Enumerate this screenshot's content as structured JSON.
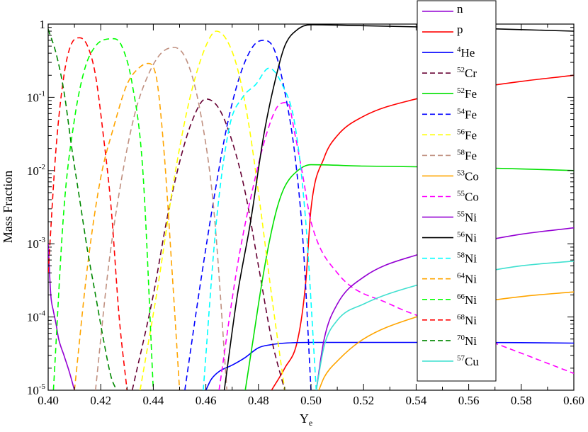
{
  "chart_data": {
    "type": "line",
    "title": "",
    "xlabel": "Y",
    "xlabel_sub": "e",
    "ylabel": "Mass Fraction",
    "xlim": [
      0.4,
      0.6
    ],
    "ylim": [
      1e-05,
      1
    ],
    "yscale": "log",
    "grid": false,
    "legend_position": "top-right",
    "x_ticks": [
      "0.40",
      "0.42",
      "0.44",
      "0.46",
      "0.48",
      "0.50",
      "0.52",
      "0.54",
      "0.56",
      "0.58",
      "0.60"
    ],
    "y_ticks": [
      {
        "mantissa": "10",
        "exp": "-5"
      },
      {
        "mantissa": "10",
        "exp": "-4"
      },
      {
        "mantissa": "10",
        "exp": "-3"
      },
      {
        "mantissa": "10",
        "exp": "-2"
      },
      {
        "mantissa": "10",
        "exp": "-1"
      },
      {
        "mantissa": "1",
        "exp": ""
      }
    ],
    "series": [
      {
        "name": "n",
        "mass": "",
        "el": "n",
        "color": "#9400d3",
        "dash": false,
        "x": [
          0.4,
          0.401,
          0.402,
          0.403,
          0.404,
          0.406,
          0.408,
          0.41
        ],
        "y": [
          0.001,
          0.0002,
          0.00012,
          8e-05,
          5e-05,
          3e-05,
          1.8e-05,
          1e-05
        ]
      },
      {
        "name": "p",
        "mass": "",
        "el": "p",
        "color": "#ff0000",
        "dash": false,
        "x": [
          0.485,
          0.49,
          0.495,
          0.498,
          0.5,
          0.505,
          0.51,
          0.52,
          0.54,
          0.56,
          0.58,
          0.6
        ],
        "y": [
          1e-05,
          2e-05,
          5e-05,
          0.0003,
          0.003,
          0.015,
          0.03,
          0.055,
          0.095,
          0.13,
          0.165,
          0.2
        ]
      },
      {
        "name": "4He",
        "mass": "4",
        "el": "He",
        "color": "#0000ff",
        "dash": false,
        "x": [
          0.46,
          0.462,
          0.465,
          0.47,
          0.475,
          0.48,
          0.485,
          0.49,
          0.5,
          0.52,
          0.56,
          0.6
        ],
        "y": [
          1e-05,
          1.4e-05,
          1.8e-05,
          2.2e-05,
          2.8e-05,
          3.8e-05,
          4.2e-05,
          4.4e-05,
          4.5e-05,
          4.5e-05,
          4.5e-05,
          4.4e-05
        ]
      },
      {
        "name": "52Cr",
        "mass": "52",
        "el": "Cr",
        "color": "#660033",
        "dash": true,
        "x": [
          0.432,
          0.44,
          0.445,
          0.45,
          0.455,
          0.46,
          0.465,
          0.47,
          0.475,
          0.48,
          0.485,
          0.49
        ],
        "y": [
          1e-05,
          0.0002,
          0.002,
          0.013,
          0.05,
          0.095,
          0.07,
          0.025,
          0.005,
          0.0005,
          5e-05,
          1e-05
        ]
      },
      {
        "name": "52Fe",
        "mass": "52",
        "el": "Fe",
        "color": "#00e000",
        "dash": false,
        "x": [
          0.475,
          0.478,
          0.481,
          0.484,
          0.487,
          0.49,
          0.495,
          0.5,
          0.52,
          0.56,
          0.6
        ],
        "y": [
          1e-05,
          5e-05,
          0.00025,
          0.001,
          0.003,
          0.006,
          0.01,
          0.012,
          0.0115,
          0.011,
          0.01
        ]
      },
      {
        "name": "54Fe",
        "mass": "54",
        "el": "Fe",
        "color": "#0000ff",
        "dash": true,
        "x": [
          0.452,
          0.458,
          0.463,
          0.468,
          0.473,
          0.478,
          0.482,
          0.486,
          0.49,
          0.494,
          0.497,
          0.5
        ],
        "y": [
          1e-05,
          0.0003,
          0.004,
          0.04,
          0.2,
          0.5,
          0.6,
          0.45,
          0.12,
          0.015,
          0.001,
          1e-05
        ]
      },
      {
        "name": "56Fe",
        "mass": "56",
        "el": "Fe",
        "color": "#ffff00",
        "dash": true,
        "x": [
          0.435,
          0.442,
          0.448,
          0.454,
          0.46,
          0.464,
          0.468,
          0.472,
          0.476,
          0.48,
          0.485,
          0.49
        ],
        "y": [
          1e-05,
          0.0003,
          0.008,
          0.1,
          0.5,
          0.8,
          0.6,
          0.25,
          0.05,
          0.005,
          0.0002,
          1e-05
        ]
      },
      {
        "name": "58Fe",
        "mass": "58",
        "el": "Fe",
        "color": "#c09080",
        "dash": true,
        "x": [
          0.418,
          0.423,
          0.428,
          0.433,
          0.438,
          0.443,
          0.448,
          0.453,
          0.458,
          0.463,
          0.468
        ],
        "y": [
          1e-05,
          0.0005,
          0.008,
          0.06,
          0.2,
          0.4,
          0.48,
          0.3,
          0.06,
          0.003,
          1e-05
        ]
      },
      {
        "name": "53Co",
        "mass": "53",
        "el": "Co",
        "color": "#ffa500",
        "dash": false,
        "x": [
          0.503,
          0.505,
          0.51,
          0.52,
          0.54,
          0.56,
          0.58,
          0.6
        ],
        "y": [
          1e-05,
          1.5e-05,
          2.5e-05,
          5e-05,
          0.0001,
          0.00015,
          0.00019,
          0.00022
        ]
      },
      {
        "name": "55Co",
        "mass": "55",
        "el": "Co",
        "color": "#ff00ff",
        "dash": true,
        "x": [
          0.465,
          0.472,
          0.478,
          0.484,
          0.488,
          0.491,
          0.494,
          0.497,
          0.5,
          0.51,
          0.53,
          0.56,
          0.6
        ],
        "y": [
          1e-05,
          0.0005,
          0.006,
          0.04,
          0.08,
          0.085,
          0.03,
          0.008,
          0.002,
          0.0004,
          0.00015,
          6e-05,
          1.7e-05
        ]
      },
      {
        "name": "55Ni",
        "mass": "55",
        "el": "Ni",
        "color": "#9400d3",
        "dash": false,
        "x": [
          0.502,
          0.505,
          0.51,
          0.52,
          0.54,
          0.56,
          0.58,
          0.6
        ],
        "y": [
          1e-05,
          5e-05,
          0.00015,
          0.00035,
          0.0007,
          0.001,
          0.00135,
          0.00165
        ]
      },
      {
        "name": "56Ni",
        "mass": "56",
        "el": "Ni",
        "color": "#000000",
        "dash": false,
        "x": [
          0.467,
          0.472,
          0.477,
          0.482,
          0.486,
          0.49,
          0.495,
          0.5,
          0.52,
          0.56,
          0.6
        ],
        "y": [
          1e-05,
          0.0002,
          0.002,
          0.03,
          0.15,
          0.5,
          0.85,
          0.98,
          0.95,
          0.88,
          0.8
        ]
      },
      {
        "name": "58Ni",
        "mass": "58",
        "el": "Ni",
        "color": "#00ffff",
        "dash": true,
        "x": [
          0.459,
          0.464,
          0.469,
          0.474,
          0.479,
          0.484,
          0.489,
          0.494,
          0.498,
          0.502
        ],
        "y": [
          1e-05,
          0.002,
          0.04,
          0.1,
          0.15,
          0.25,
          0.15,
          0.04,
          0.002,
          1e-05
        ]
      },
      {
        "name": "64Ni",
        "mass": "64",
        "el": "Ni",
        "color": "#ffa500",
        "dash": true,
        "x": [
          0.41,
          0.415,
          0.42,
          0.425,
          0.43,
          0.435,
          0.438,
          0.441,
          0.444,
          0.447,
          0.45
        ],
        "y": [
          1e-05,
          0.0005,
          0.008,
          0.04,
          0.15,
          0.26,
          0.29,
          0.2,
          0.02,
          0.0005,
          1e-05
        ]
      },
      {
        "name": "66Ni",
        "mass": "66",
        "el": "Ni",
        "color": "#00ff00",
        "dash": true,
        "x": [
          0.402,
          0.406,
          0.41,
          0.414,
          0.418,
          0.422,
          0.425,
          0.428,
          0.432,
          0.436,
          0.44
        ],
        "y": [
          1e-05,
          0.003,
          0.05,
          0.25,
          0.5,
          0.62,
          0.63,
          0.5,
          0.15,
          0.01,
          1e-05
        ]
      },
      {
        "name": "68Ni",
        "mass": "68",
        "el": "Ni",
        "color": "#ff0000",
        "dash": true,
        "x": [
          0.4,
          0.403,
          0.406,
          0.409,
          0.412,
          0.415,
          0.418,
          0.421,
          0.424,
          0.427,
          0.43
        ],
        "y": [
          0.0004,
          0.02,
          0.2,
          0.55,
          0.65,
          0.5,
          0.2,
          0.03,
          0.003,
          0.0001,
          1e-05
        ]
      },
      {
        "name": "70Ni",
        "mass": "70",
        "el": "Ni",
        "color": "#008800",
        "dash": true,
        "x": [
          0.4,
          0.403,
          0.406,
          0.409,
          0.412,
          0.415,
          0.418,
          0.421,
          0.424,
          0.426
        ],
        "y": [
          0.85,
          0.4,
          0.12,
          0.02,
          0.004,
          0.0008,
          0.0002,
          5e-05,
          1.5e-05,
          1e-05
        ]
      },
      {
        "name": "57Cu",
        "mass": "57",
        "el": "Cu",
        "color": "#40e0d0",
        "dash": false,
        "x": [
          0.502,
          0.505,
          0.51,
          0.52,
          0.54,
          0.56,
          0.58,
          0.6
        ],
        "y": [
          1e-05,
          4e-05,
          9e-05,
          0.00015,
          0.00027,
          0.00038,
          0.0005,
          0.00058
        ]
      }
    ]
  }
}
